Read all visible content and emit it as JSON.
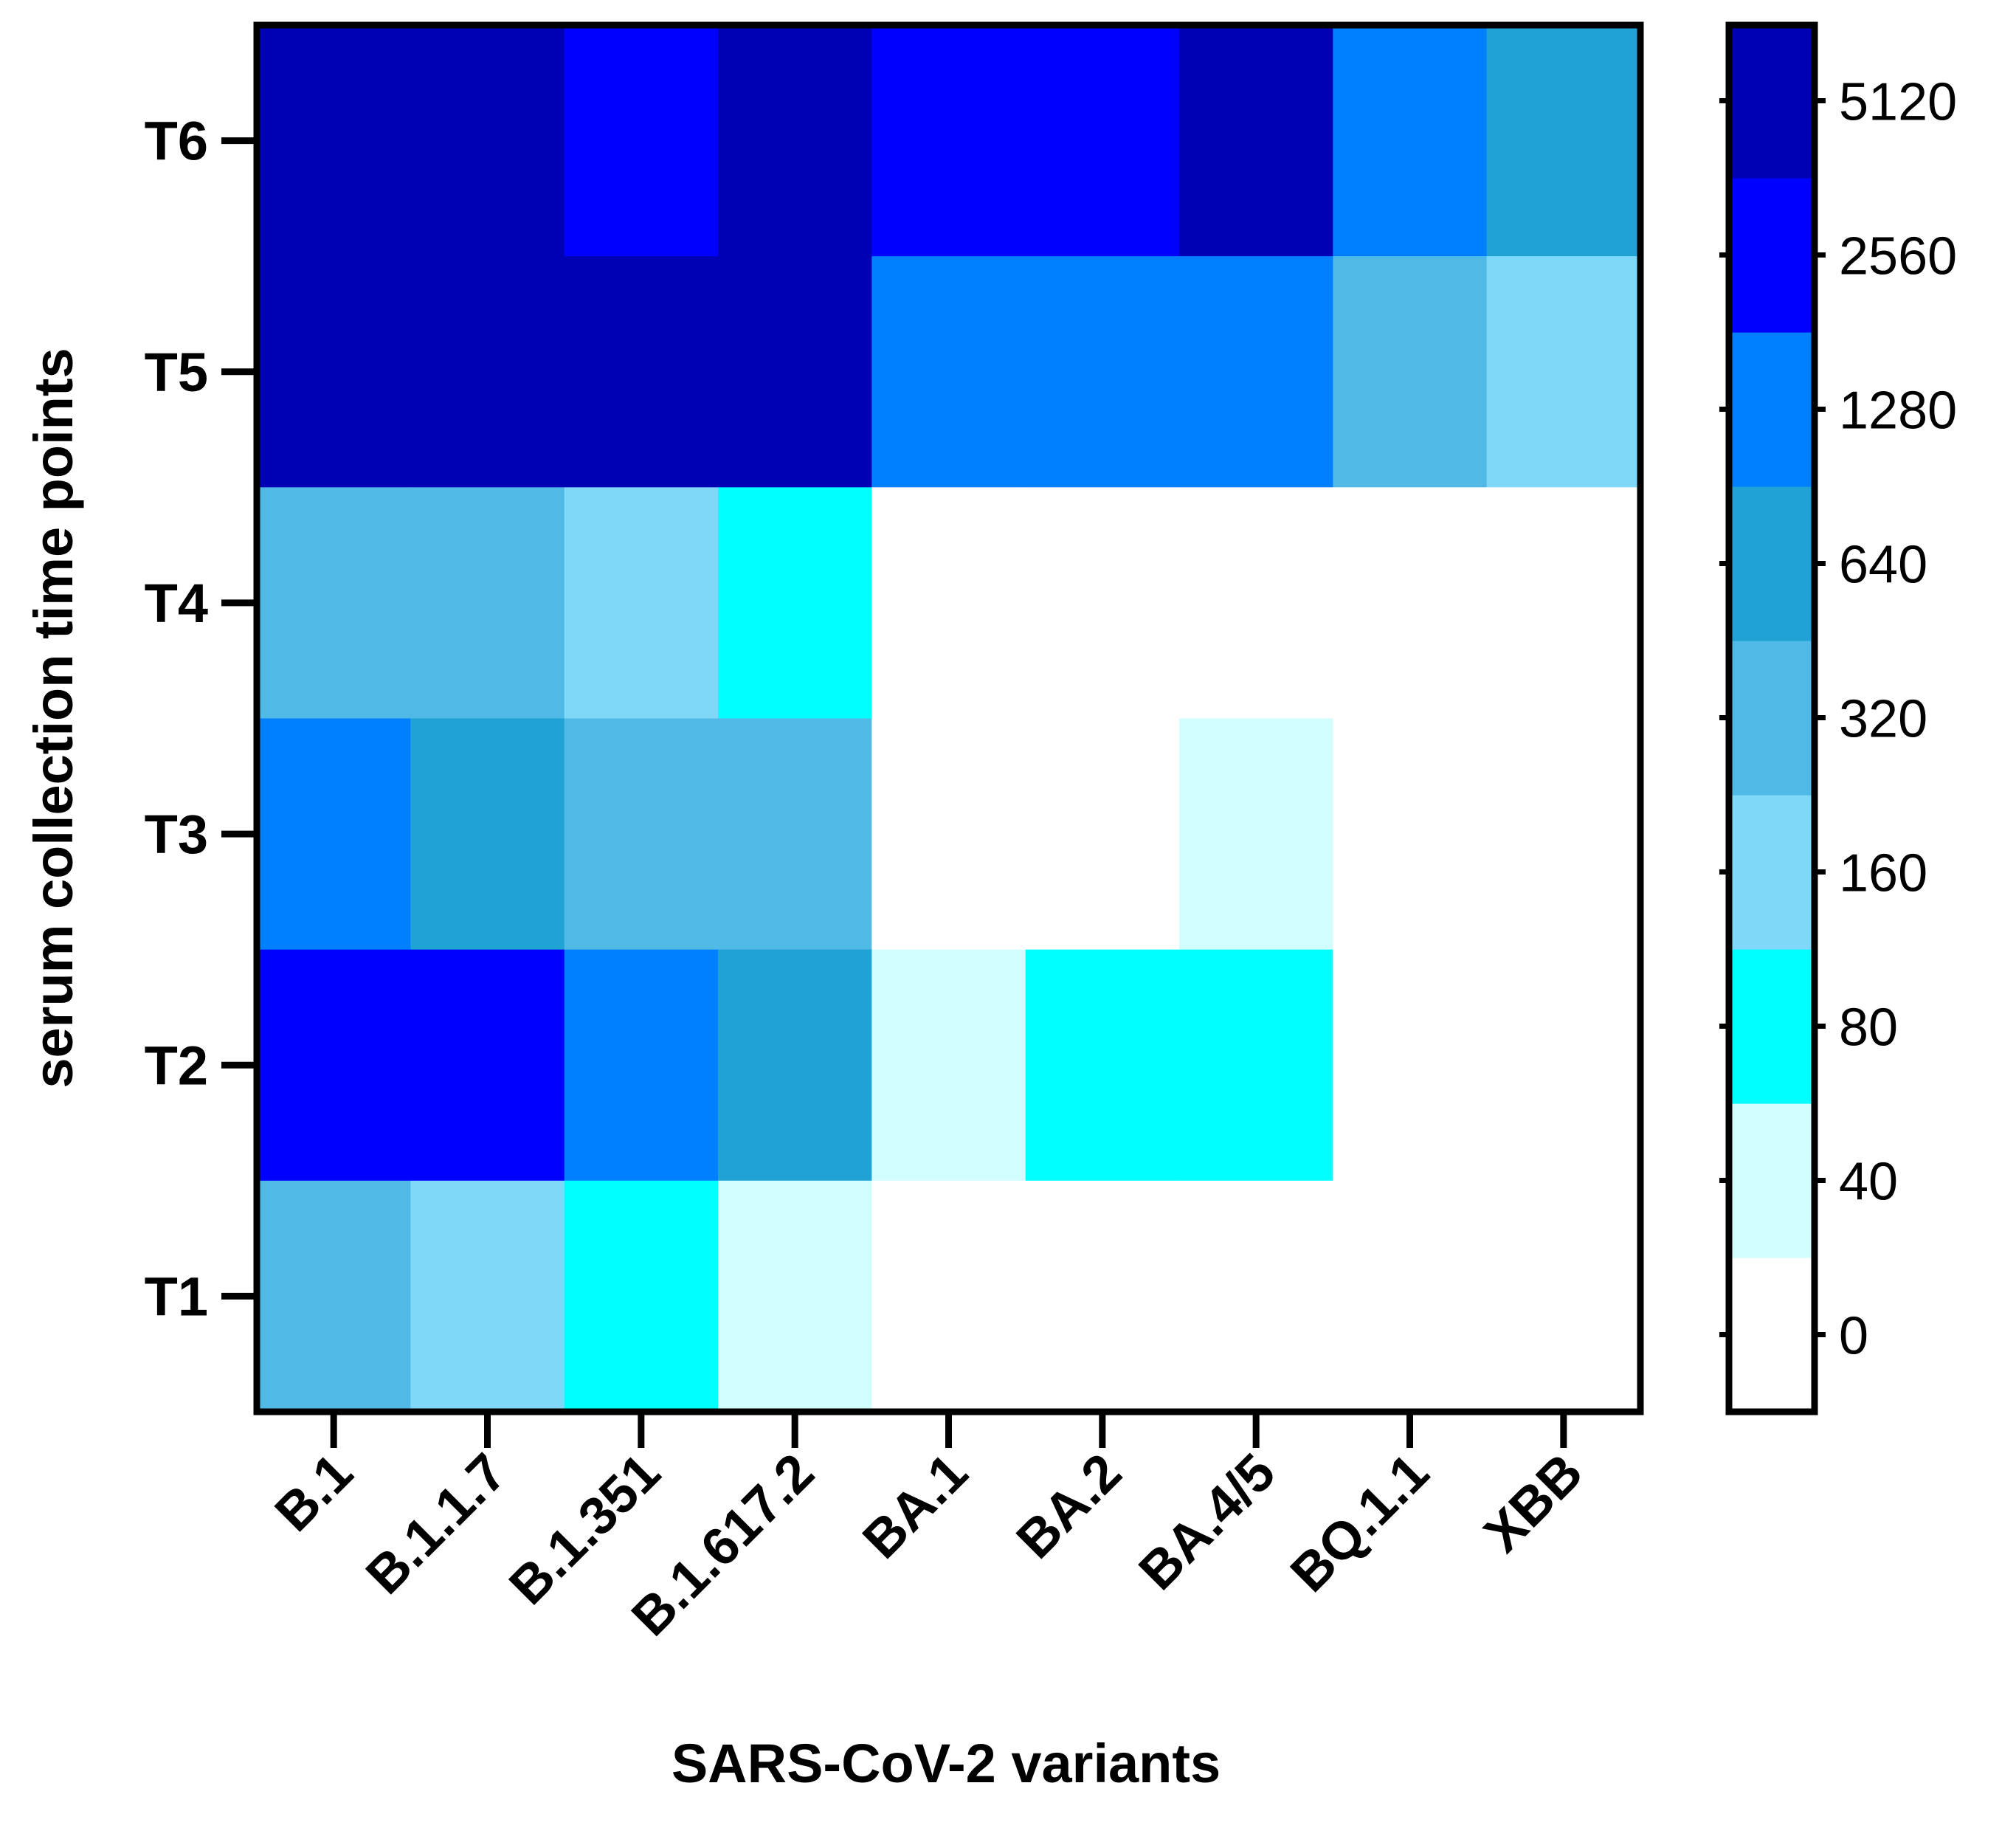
{
  "chart_data": {
    "type": "heatmap",
    "xlabel": "SARS-CoV-2 variants",
    "ylabel": "serum collection time points",
    "x": [
      "B.1",
      "B.1.1.7",
      "B.1.351",
      "B.1.617.2",
      "BA.1",
      "BA.2",
      "BA.4/5",
      "BQ.1.1",
      "XBB"
    ],
    "y": [
      "T6",
      "T5",
      "T4",
      "T3",
      "T2",
      "T1"
    ],
    "values": [
      [
        5120,
        5120,
        2560,
        5120,
        2560,
        2560,
        5120,
        1280,
        640
      ],
      [
        5120,
        5120,
        5120,
        5120,
        1280,
        1280,
        1280,
        320,
        160
      ],
      [
        320,
        320,
        160,
        80,
        0,
        0,
        0,
        0,
        0
      ],
      [
        1280,
        640,
        320,
        320,
        0,
        0,
        40,
        0,
        0
      ],
      [
        2560,
        2560,
        1280,
        640,
        40,
        80,
        80,
        0,
        0
      ],
      [
        320,
        160,
        80,
        40,
        0,
        0,
        0,
        0,
        0
      ]
    ],
    "colorbar": {
      "levels": [
        "0",
        "40",
        "80",
        "160",
        "320",
        "640",
        "1280",
        "2560",
        "5120"
      ],
      "colors": {
        "0": "#ffffff",
        "40": "#d2fdfd",
        "80": "#00ffff",
        "160": "#80d8f8",
        "320": "#50b9e6",
        "640": "#20a3d4",
        "1280": "#0080ff",
        "2560": "#0000ff",
        "5120": "#0000b4"
      }
    }
  }
}
